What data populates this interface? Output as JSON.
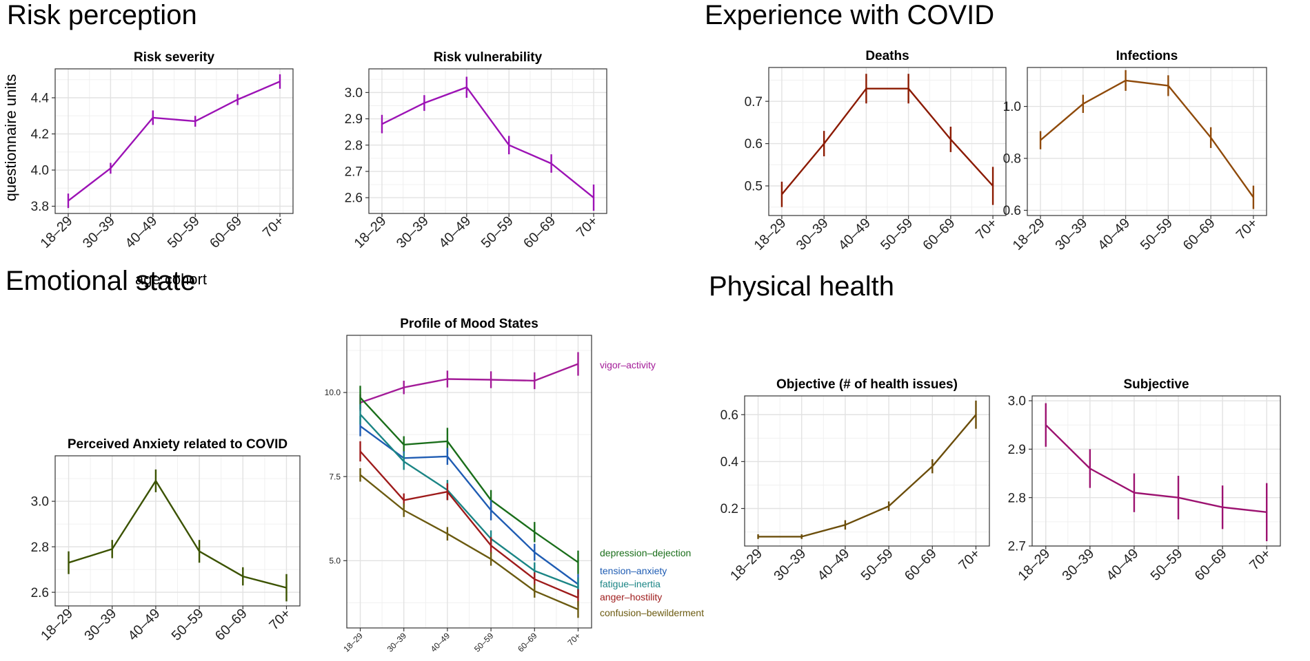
{
  "sections": {
    "risk": "Risk perception",
    "covid": "Experience with COVID",
    "emotional": "Emotional state",
    "physical": "Physical health"
  },
  "shared_ylabel": "questionnaire units",
  "shared_xlabel": "age cohort",
  "chart_data": [
    {
      "id": "risk-severity",
      "type": "line",
      "title": "Risk severity",
      "categories": [
        "18–29",
        "30–39",
        "40–49",
        "50–59",
        "60–69",
        "70+"
      ],
      "ylim": [
        3.76,
        4.56
      ],
      "yticks": [
        3.8,
        4.0,
        4.2,
        4.4
      ],
      "tick_decimals": 1,
      "series": [
        {
          "name": "Risk severity",
          "color": "#9c12b5",
          "values": [
            3.83,
            4.01,
            4.29,
            4.27,
            4.39,
            4.49
          ],
          "err": [
            0.04,
            0.03,
            0.04,
            0.03,
            0.03,
            0.04
          ]
        }
      ]
    },
    {
      "id": "risk-vulnerability",
      "type": "line",
      "title": "Risk vulnerability",
      "categories": [
        "18–29",
        "30–39",
        "40–49",
        "50–59",
        "60–69",
        "70+"
      ],
      "ylim": [
        2.54,
        3.09
      ],
      "yticks": [
        2.6,
        2.7,
        2.8,
        2.9,
        3.0
      ],
      "tick_decimals": 1,
      "series": [
        {
          "name": "Risk vulnerability",
          "color": "#9c12b5",
          "values": [
            2.88,
            2.96,
            3.02,
            2.8,
            2.73,
            2.6
          ],
          "err": [
            0.035,
            0.03,
            0.04,
            0.035,
            0.035,
            0.05
          ]
        }
      ]
    },
    {
      "id": "deaths",
      "type": "line",
      "title": "Deaths",
      "categories": [
        "18–29",
        "30–39",
        "40–49",
        "50–59",
        "60–69",
        "70+"
      ],
      "ylim": [
        0.43,
        0.78
      ],
      "yticks": [
        0.5,
        0.6,
        0.7
      ],
      "tick_decimals": 1,
      "series": [
        {
          "name": "Deaths",
          "color": "#8b1a00",
          "values": [
            0.48,
            0.6,
            0.73,
            0.73,
            0.61,
            0.5
          ],
          "err": [
            0.03,
            0.03,
            0.035,
            0.035,
            0.03,
            0.045
          ]
        }
      ]
    },
    {
      "id": "infections",
      "type": "line",
      "title": "Infections",
      "categories": [
        "18–29",
        "30–39",
        "40–49",
        "50–59",
        "60–69",
        "70+"
      ],
      "ylim": [
        0.58,
        1.15
      ],
      "yticks": [
        0.6,
        0.8,
        1.0
      ],
      "tick_decimals": 1,
      "series": [
        {
          "name": "Infections",
          "color": "#8f4a0a",
          "values": [
            0.87,
            1.01,
            1.1,
            1.08,
            0.88,
            0.65
          ],
          "err": [
            0.035,
            0.035,
            0.04,
            0.04,
            0.04,
            0.045
          ]
        }
      ]
    },
    {
      "id": "anxiety",
      "type": "line",
      "title": "Perceived Anxiety related to COVID",
      "categories": [
        "18–29",
        "30–39",
        "40–49",
        "50–59",
        "60–69",
        "70+"
      ],
      "ylim": [
        2.54,
        3.2
      ],
      "yticks": [
        2.6,
        2.8,
        3.0
      ],
      "tick_decimals": 1,
      "series": [
        {
          "name": "Perceived Anxiety",
          "color": "#3b5200",
          "values": [
            2.73,
            2.79,
            3.09,
            2.78,
            2.67,
            2.62
          ],
          "err": [
            0.05,
            0.04,
            0.05,
            0.05,
            0.04,
            0.06
          ]
        }
      ]
    },
    {
      "id": "poms",
      "type": "line",
      "title": "Profile of Mood States",
      "categories": [
        "18–29",
        "30–39",
        "40–49",
        "50–59",
        "60–69",
        "70+"
      ],
      "ylim": [
        3.0,
        11.7
      ],
      "yticks": [
        5.0,
        7.5,
        10.0
      ],
      "tick_decimals": 1,
      "series": [
        {
          "name": "vigor–activity",
          "color": "#a31b98",
          "values": [
            9.7,
            10.15,
            10.4,
            10.38,
            10.35,
            10.85
          ],
          "err": [
            0.25,
            0.2,
            0.25,
            0.25,
            0.25,
            0.35
          ]
        },
        {
          "name": "depression–dejection",
          "color": "#1a6e1a",
          "values": [
            9.85,
            8.45,
            8.55,
            6.8,
            5.85,
            4.95
          ],
          "err": [
            0.35,
            0.25,
            0.4,
            0.3,
            0.3,
            0.35
          ]
        },
        {
          "name": "tension–anxiety",
          "color": "#1f5cb3",
          "values": [
            9.0,
            8.05,
            8.1,
            6.5,
            5.25,
            4.3
          ],
          "err": [
            0.3,
            0.2,
            0.25,
            0.3,
            0.25,
            0.3
          ]
        },
        {
          "name": "fatigue–inertia",
          "color": "#1b8585",
          "values": [
            9.35,
            7.95,
            7.1,
            5.65,
            4.7,
            4.2
          ],
          "err": [
            0.3,
            0.25,
            0.3,
            0.25,
            0.25,
            0.3
          ]
        },
        {
          "name": "anger–hostility",
          "color": "#9e1b1b",
          "values": [
            8.25,
            6.8,
            7.05,
            5.45,
            4.45,
            3.9
          ],
          "err": [
            0.3,
            0.2,
            0.25,
            0.25,
            0.2,
            0.25
          ]
        },
        {
          "name": "confusion–bewilderment",
          "color": "#6b5a10",
          "values": [
            7.55,
            6.5,
            5.8,
            5.05,
            4.1,
            3.55
          ],
          "err": [
            0.2,
            0.2,
            0.2,
            0.2,
            0.2,
            0.25
          ]
        }
      ]
    },
    {
      "id": "objective",
      "type": "line",
      "title": "Objective (# of health issues)",
      "categories": [
        "18–29",
        "30–39",
        "40–49",
        "50–59",
        "60–69",
        "70+"
      ],
      "ylim": [
        0.04,
        0.68
      ],
      "yticks": [
        0.2,
        0.4,
        0.6
      ],
      "tick_decimals": 1,
      "series": [
        {
          "name": "Objective",
          "color": "#6b4d0a",
          "values": [
            0.08,
            0.08,
            0.13,
            0.21,
            0.38,
            0.6
          ],
          "err": [
            0.01,
            0.01,
            0.02,
            0.02,
            0.03,
            0.06
          ]
        }
      ]
    },
    {
      "id": "subjective",
      "type": "line",
      "title": "Subjective",
      "categories": [
        "18–29",
        "30–39",
        "40–49",
        "50–59",
        "60–69",
        "70+"
      ],
      "ylim": [
        2.7,
        3.01
      ],
      "yticks": [
        2.7,
        2.8,
        2.9,
        3.0
      ],
      "tick_decimals": 1,
      "series": [
        {
          "name": "Subjective",
          "color": "#9c1270",
          "values": [
            2.95,
            2.86,
            2.81,
            2.8,
            2.78,
            2.77
          ],
          "err": [
            0.045,
            0.04,
            0.04,
            0.045,
            0.045,
            0.06
          ]
        }
      ]
    }
  ]
}
